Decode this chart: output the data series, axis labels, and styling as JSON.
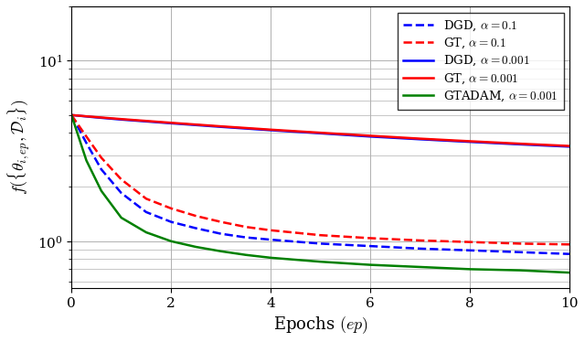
{
  "title": "",
  "xlabel": "Epochs $(ep)$",
  "ylabel": "$f(\\{\\theta_{i,ep}, \\mathcal{D}_i\\})$",
  "xlim": [
    0,
    10
  ],
  "ylim_log": [
    0.55,
    20
  ],
  "x_ticks": [
    0,
    2,
    4,
    6,
    8,
    10
  ],
  "curves": {
    "DGD_01": {
      "label": "DGD, $\\alpha = 0.1$",
      "color": "#0000ff",
      "linestyle": "dashed",
      "linewidth": 1.8,
      "x": [
        0,
        0.3,
        0.6,
        1.0,
        1.5,
        2.0,
        2.5,
        3.0,
        3.5,
        4.0,
        5.0,
        6.0,
        7.0,
        8.0,
        9.0,
        10.0
      ],
      "y": [
        5.0,
        3.5,
        2.5,
        1.85,
        1.45,
        1.28,
        1.18,
        1.1,
        1.05,
        1.02,
        0.97,
        0.94,
        0.91,
        0.89,
        0.87,
        0.85
      ]
    },
    "GT_01": {
      "label": "GT, $\\alpha = 0.1$",
      "color": "#ff0000",
      "linestyle": "dashed",
      "linewidth": 1.8,
      "x": [
        0,
        0.3,
        0.6,
        1.0,
        1.5,
        2.0,
        2.5,
        3.0,
        3.5,
        4.0,
        5.0,
        6.0,
        7.0,
        8.0,
        9.0,
        10.0
      ],
      "y": [
        5.0,
        3.8,
        2.9,
        2.2,
        1.72,
        1.52,
        1.38,
        1.28,
        1.2,
        1.15,
        1.08,
        1.04,
        1.01,
        0.99,
        0.97,
        0.96
      ]
    },
    "DGD_001": {
      "label": "DGD, $\\alpha = 0.001$",
      "color": "#0000ff",
      "linestyle": "solid",
      "linewidth": 1.8,
      "x": [
        0,
        0.5,
        1.0,
        2.0,
        3.0,
        4.0,
        5.0,
        6.0,
        7.0,
        8.0,
        9.0,
        10.0
      ],
      "y": [
        5.0,
        4.85,
        4.72,
        4.5,
        4.3,
        4.12,
        3.96,
        3.8,
        3.67,
        3.55,
        3.44,
        3.34
      ]
    },
    "GT_001": {
      "label": "GT, $\\alpha = 0.001$",
      "color": "#ff0000",
      "linestyle": "solid",
      "linewidth": 1.8,
      "x": [
        0,
        0.5,
        1.0,
        2.0,
        3.0,
        4.0,
        5.0,
        6.0,
        7.0,
        8.0,
        9.0,
        10.0
      ],
      "y": [
        5.0,
        4.87,
        4.75,
        4.53,
        4.33,
        4.15,
        3.99,
        3.84,
        3.7,
        3.58,
        3.47,
        3.37
      ]
    },
    "GTADAM_001": {
      "label": "GTADAM, $\\alpha = 0.001$",
      "color": "#008000",
      "linestyle": "solid",
      "linewidth": 1.8,
      "x": [
        0,
        0.3,
        0.6,
        1.0,
        1.5,
        2.0,
        2.5,
        3.0,
        3.5,
        4.0,
        5.0,
        6.0,
        7.0,
        8.0,
        9.0,
        10.0
      ],
      "y": [
        5.0,
        2.8,
        1.9,
        1.35,
        1.12,
        1.0,
        0.93,
        0.88,
        0.84,
        0.81,
        0.77,
        0.74,
        0.72,
        0.7,
        0.69,
        0.67
      ]
    }
  },
  "grid_color": "#b0b0b0",
  "bg_color": "#ffffff",
  "legend_fontsize": 9.5,
  "axis_fontsize": 13,
  "tick_fontsize": 11
}
